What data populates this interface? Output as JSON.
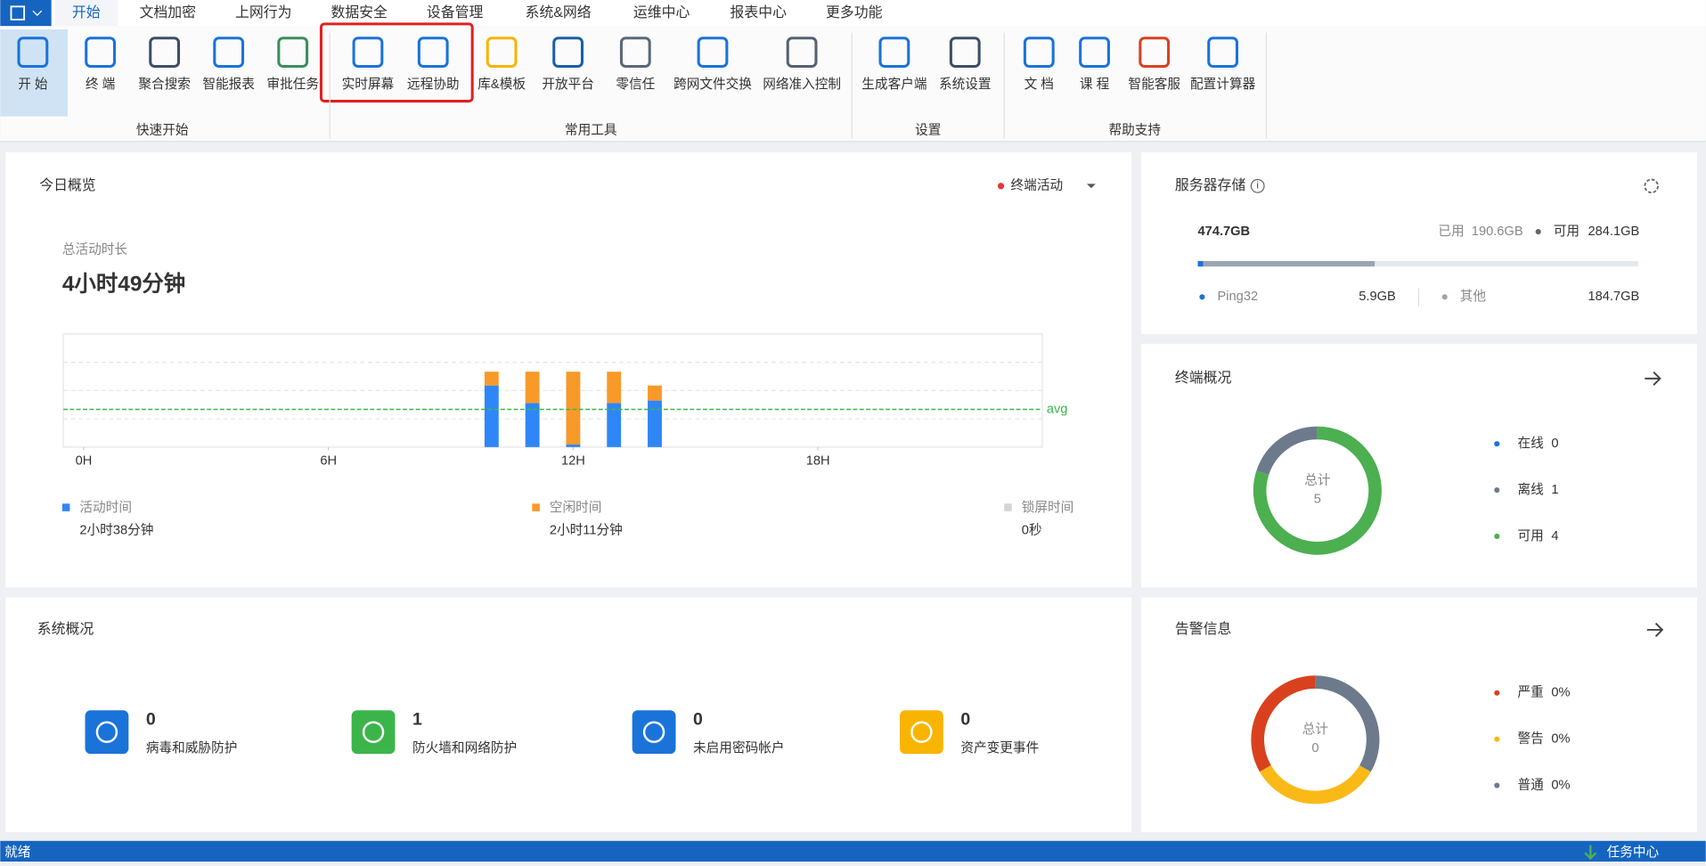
{
  "menu": {
    "tabs": [
      "开始",
      "文档加密",
      "上网行为",
      "数据安全",
      "设备管理",
      "系统&网络",
      "运维中心",
      "报表中心",
      "更多功能"
    ]
  },
  "ribbon": {
    "groups": [
      {
        "label": "快速开始",
        "items": [
          "开 始",
          "终 端",
          "聚合搜索",
          "智能报表",
          "审批任务"
        ]
      },
      {
        "label": "常用工具",
        "items": [
          "实时屏幕",
          "远程协助",
          "库&模板",
          "开放平台",
          "零信任",
          "跨网文件交换",
          "网络准入控制"
        ]
      },
      {
        "label": "设置",
        "items": [
          "生成客户端",
          "系统设置"
        ]
      },
      {
        "label": "帮助支持",
        "items": [
          "文 档",
          "课 程",
          "智能客服",
          "配置计算器"
        ]
      }
    ]
  },
  "overview": {
    "title": "今日概览",
    "filter": "终端活动",
    "total_label": "总活动时长",
    "total": "4小时49分钟"
  },
  "chart_data": {
    "type": "bar",
    "stacked": true,
    "x": [
      10,
      11,
      12,
      13,
      14
    ],
    "xlim": [
      -0.5,
      23.5
    ],
    "xticks": [
      {
        "value": 0,
        "label": "0H"
      },
      {
        "value": 6,
        "label": "6H"
      },
      {
        "value": 12,
        "label": "12H"
      },
      {
        "value": 18,
        "label": "18H"
      }
    ],
    "ylim": [
      0,
      90
    ],
    "avg": 30,
    "avg_label": "avg",
    "series": [
      {
        "name": "活动时间",
        "color": "#2f86f6",
        "values": [
          49,
          35,
          2,
          35,
          37
        ],
        "total": "2小时38分钟"
      },
      {
        "name": "空闲时间",
        "color": "#f79a2a",
        "values": [
          11,
          25,
          58,
          25,
          12
        ],
        "total": "2小时11分钟"
      },
      {
        "name": "锁屏时间",
        "color": "#d4d4d4",
        "values": [
          0,
          0,
          0,
          0,
          0
        ],
        "total": "0秒"
      }
    ]
  },
  "storage": {
    "title": "服务器存储",
    "total": 474.7,
    "total_label": "474.7GB",
    "used_name": "已用",
    "used": 190.6,
    "used_label": "190.6GB",
    "free_name": "可用",
    "free": 284.1,
    "free_label": "284.1GB",
    "items": [
      {
        "name": "Ping32",
        "value": 5.9,
        "value_label": "5.9GB",
        "color": "#1a73d9"
      },
      {
        "name": "其他",
        "value": 184.7,
        "value_label": "184.7GB",
        "color": "#9aa5b4"
      }
    ]
  },
  "terminals": {
    "title": "终端概况",
    "center_label": "总计",
    "total": 5,
    "items": [
      {
        "name": "在线",
        "value": 0,
        "color": "#1a73d9"
      },
      {
        "name": "离线",
        "value": 1,
        "color": "#6c7a8c"
      },
      {
        "name": "可用",
        "value": 4,
        "color": "#4caf50"
      }
    ]
  },
  "system": {
    "title": "系统概况",
    "items": [
      {
        "label": "病毒和威胁防护",
        "value": 0,
        "color": "#1a73d9"
      },
      {
        "label": "防火墙和网络防护",
        "value": 1,
        "color": "#3bb54a"
      },
      {
        "label": "未启用密码帐户",
        "value": 0,
        "color": "#1a73d9"
      },
      {
        "label": "资产变更事件",
        "value": 0,
        "color": "#f8b400"
      }
    ]
  },
  "alerts": {
    "title": "告警信息",
    "center_label": "总计",
    "total": 0,
    "items": [
      {
        "name": "严重",
        "value": 0,
        "value_label": "0%",
        "color": "#d9411e"
      },
      {
        "name": "警告",
        "value": 0,
        "value_label": "0%",
        "color": "#fbb917"
      },
      {
        "name": "普通",
        "value": 0,
        "value_label": "0%",
        "color": "#6c7a8c"
      }
    ]
  },
  "status": {
    "left": "就绪",
    "right": "任务中心"
  }
}
